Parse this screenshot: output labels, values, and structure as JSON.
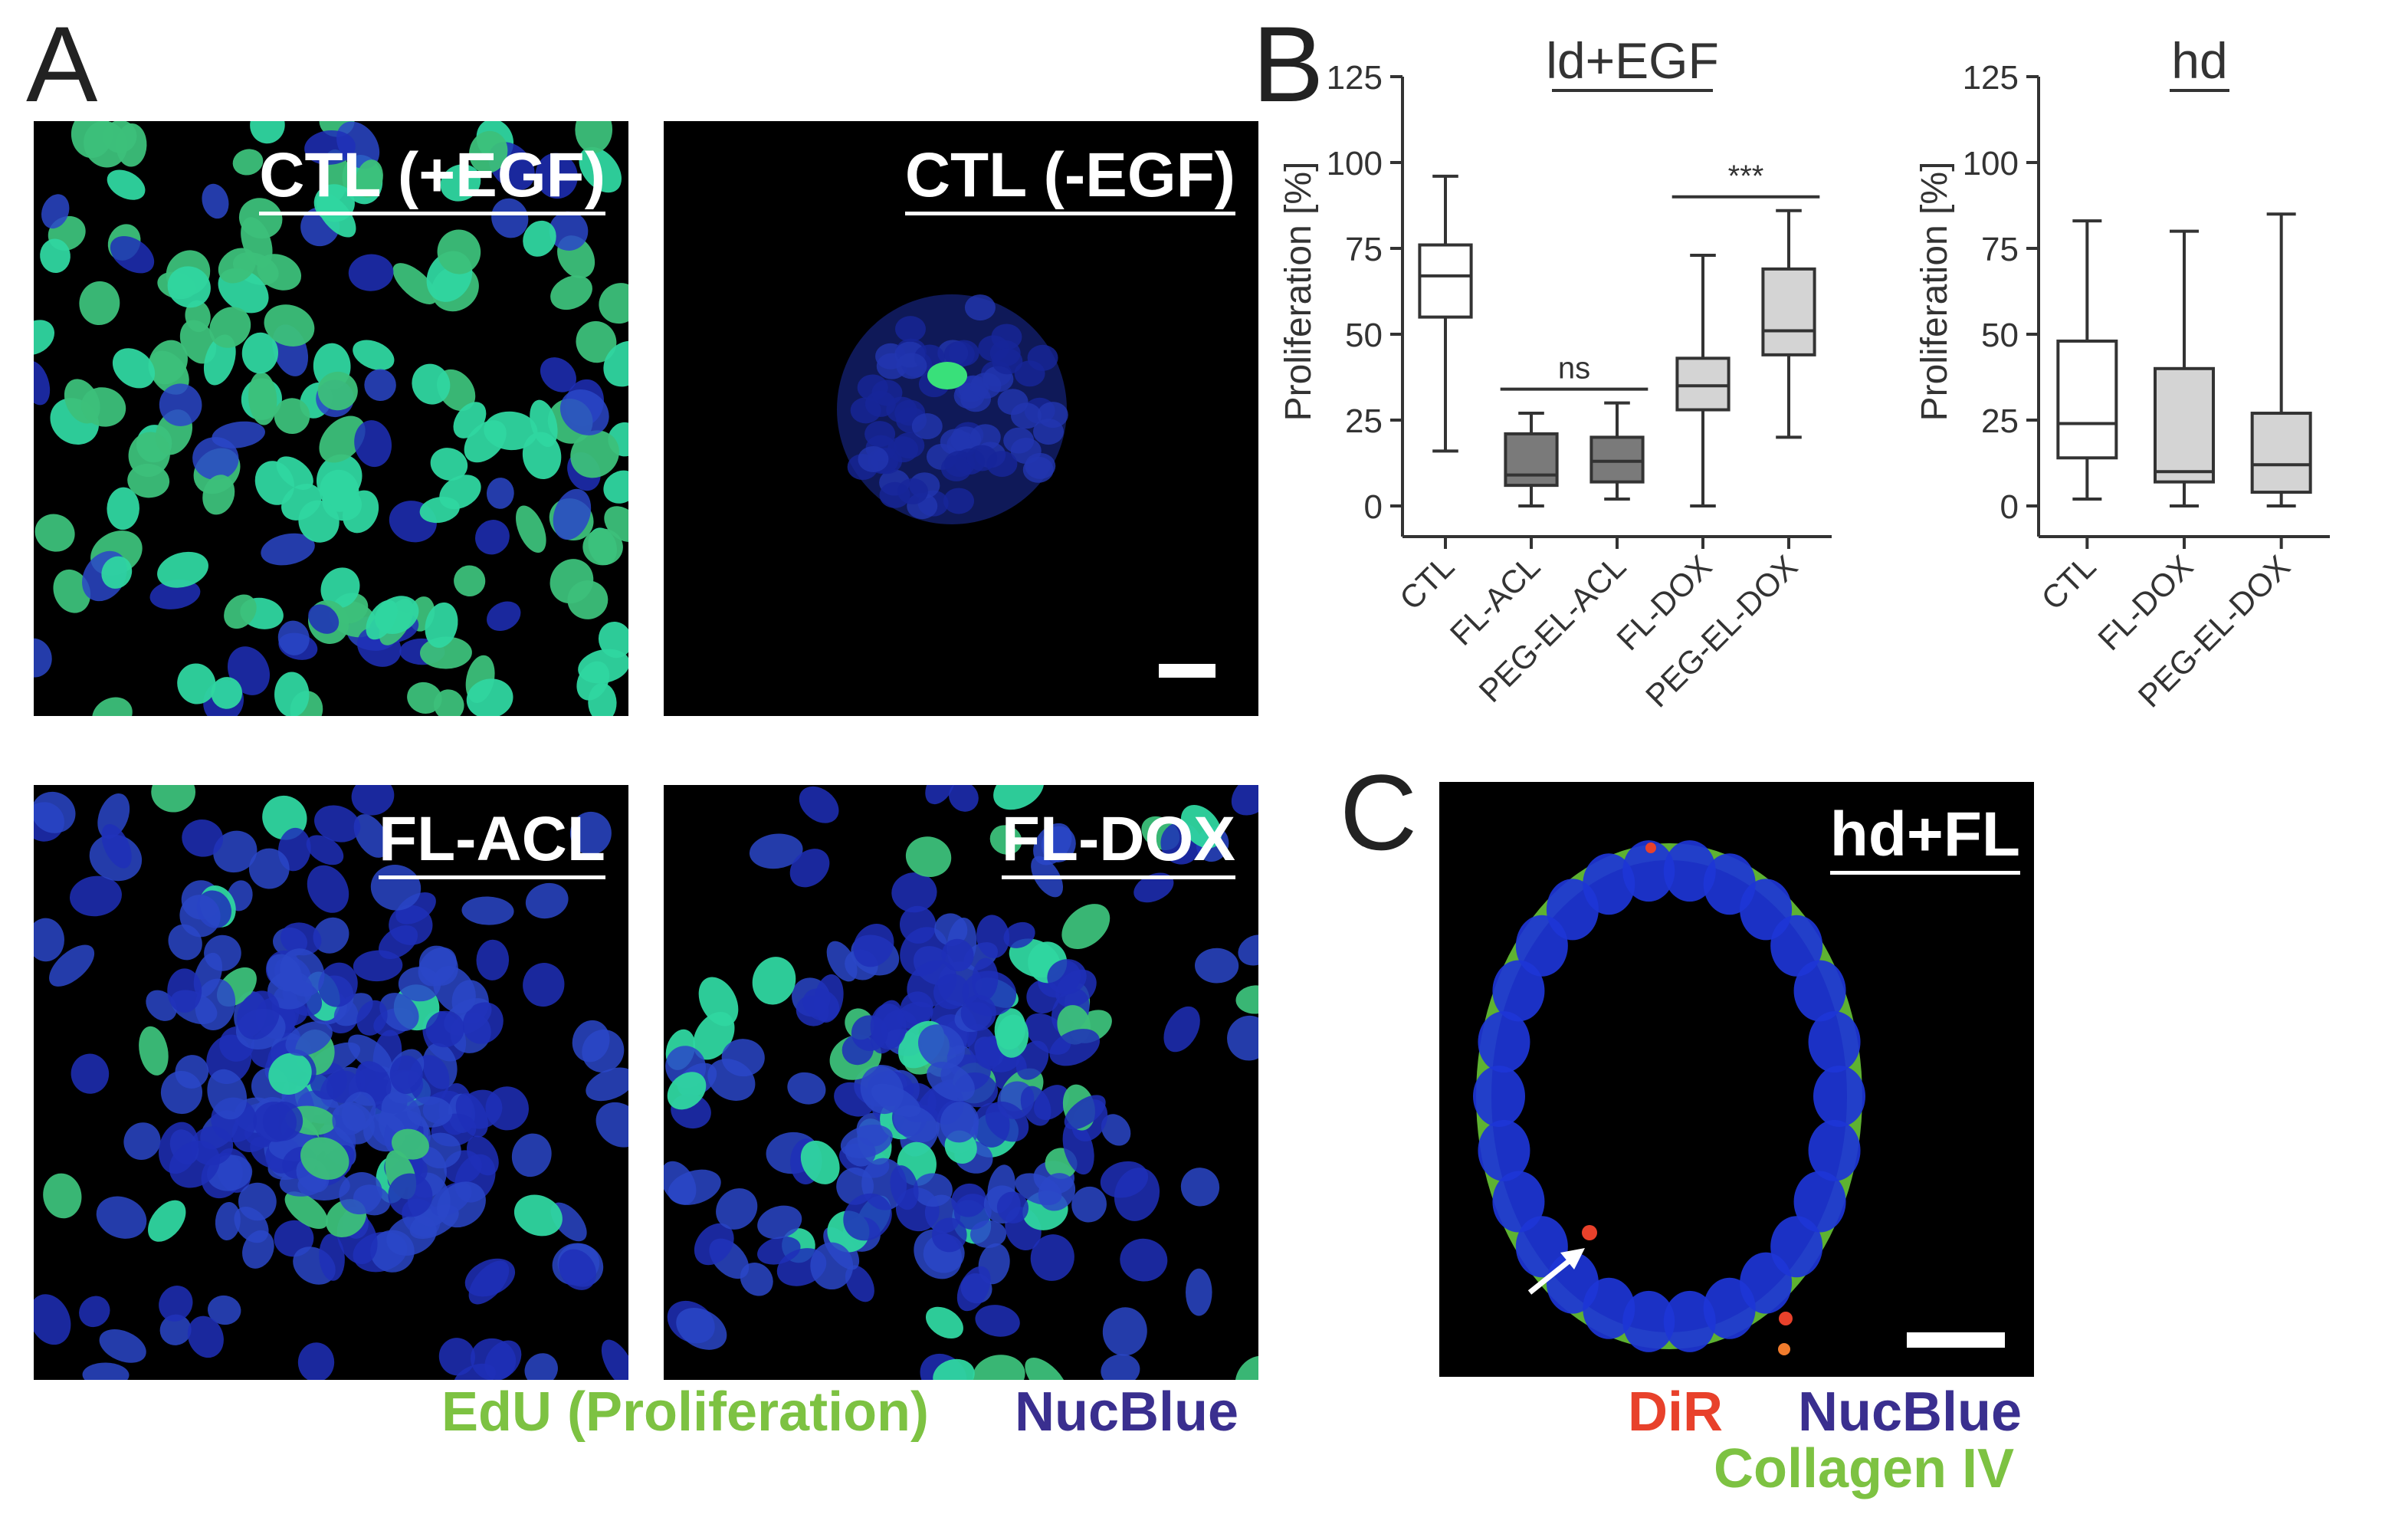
{
  "panels": {
    "a_letter": "A",
    "b_letter": "B",
    "c_letter": "C"
  },
  "images": [
    {
      "label": "CTL (+EGF)",
      "proliferating": "high",
      "scale_bar": false
    },
    {
      "label": "CTL (-EGF)",
      "proliferating": "single",
      "scale_bar": true
    },
    {
      "label": "FL-ACL",
      "proliferating": "low",
      "scale_bar": false
    },
    {
      "label": "FL-DOX",
      "proliferating": "medium",
      "scale_bar": false
    }
  ],
  "panel_a_legend": {
    "edu": "EdU (Proliferation)",
    "nucblue": "NucBlue"
  },
  "panel_c": {
    "label": "hd+FL",
    "legend": {
      "dir": "DiR",
      "nucblue": "NucBlue",
      "collagen": "Collagen IV"
    }
  },
  "colors": {
    "edu": "#7dc242",
    "nucblue": "#3a2f8f",
    "dir": "#e8412b",
    "collagen": "#7dc242",
    "box_dark": "#7a7a7a",
    "box_light": "#d4d4d4",
    "box_white": "#ffffff"
  },
  "chart_data": [
    {
      "type": "box",
      "title": "ld+EGF",
      "ylabel": "Proliferation [%]",
      "ylim": [
        0,
        125
      ],
      "yticks": [
        0,
        25,
        50,
        75,
        100,
        125
      ],
      "categories": [
        "CTL",
        "FL-ACL",
        "PEG-EL-ACL",
        "FL-DOX",
        "PEG-EL-DOX"
      ],
      "boxes": [
        {
          "min": 16,
          "q1": 55,
          "median": 67,
          "q3": 76,
          "max": 96,
          "fill": "white"
        },
        {
          "min": 0,
          "q1": 6,
          "median": 9,
          "q3": 21,
          "max": 27,
          "fill": "dark"
        },
        {
          "min": 2,
          "q1": 7,
          "median": 13,
          "q3": 20,
          "max": 30,
          "fill": "dark"
        },
        {
          "min": 0,
          "q1": 28,
          "median": 35,
          "q3": 43,
          "max": 73,
          "fill": "light"
        },
        {
          "min": 20,
          "q1": 44,
          "median": 51,
          "q3": 69,
          "max": 86,
          "fill": "light"
        }
      ],
      "annotations": [
        {
          "text": "ns",
          "from": 1,
          "to": 2,
          "y": 34
        },
        {
          "text": "***",
          "from": 3,
          "to": 4,
          "y": 90
        }
      ]
    },
    {
      "type": "box",
      "title": "hd",
      "ylabel": "Proliferation [%]",
      "ylim": [
        0,
        125
      ],
      "yticks": [
        0,
        25,
        50,
        75,
        100,
        125
      ],
      "categories": [
        "CTL",
        "FL-DOX",
        "PEG-EL-DOX"
      ],
      "boxes": [
        {
          "min": 2,
          "q1": 14,
          "median": 24,
          "q3": 48,
          "max": 83,
          "fill": "white"
        },
        {
          "min": 0,
          "q1": 7,
          "median": 10,
          "q3": 40,
          "max": 80,
          "fill": "light"
        },
        {
          "min": 0,
          "q1": 4,
          "median": 12,
          "q3": 27,
          "max": 85,
          "fill": "light"
        }
      ],
      "annotations": []
    }
  ]
}
